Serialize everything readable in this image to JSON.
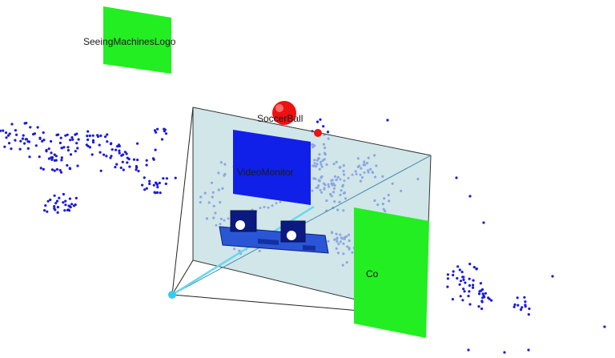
{
  "viewport": {
    "background": "#ffffff",
    "labels": {
      "logo": "SeeingMachinesLogo",
      "ball": "SoccerBall",
      "monitor": "VideoMonitor",
      "panel": "Co"
    },
    "colors": {
      "points": "#1a1adf",
      "logo_plane": "#22ee22",
      "near_plane": "rgba(190,220,225,0.75)",
      "monitor": "#1020e8",
      "ball": "#ee1111",
      "camera_origin": "#33ccee",
      "stereo_rig": "#2a56d6"
    },
    "icons": [
      "camera-origin-icon",
      "stereo-camera-rig-icon"
    ]
  }
}
